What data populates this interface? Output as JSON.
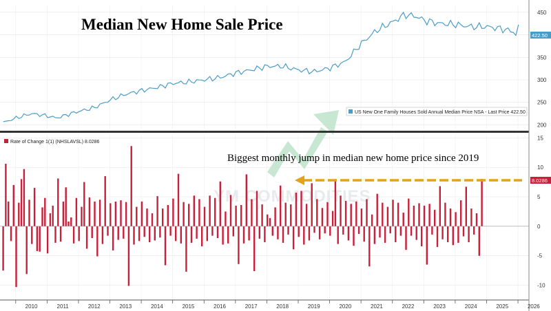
{
  "title": "Median New Home Sale Price",
  "watermark": "YM COMMODITIES",
  "annotation": "Biggest monthly jump in median new home price since 2019",
  "colors": {
    "price_line": "#4a9cc8",
    "roc_bars": "#c8203a",
    "arrow": "#e4a21c",
    "price_label_bg": "#4a9cc8",
    "roc_label_bg": "#c8203a",
    "watermark_logo": "#7cc7a0"
  },
  "chart_data": [
    {
      "type": "line",
      "series_name": "US New One Family Houses Sold Annual Median Price NSA - Last Price 422.50",
      "last_value_label": "422.50",
      "ylim": [
        190,
        465
      ],
      "yticks": [
        200,
        250,
        300,
        350,
        400,
        450
      ],
      "xlim": [
        2009.5,
        2026.35
      ],
      "x_ticks": [
        "2010",
        "2011",
        "2012",
        "2013",
        "2014",
        "2015",
        "2016",
        "2017",
        "2018",
        "2019",
        "2020",
        "2021",
        "2022",
        "2023",
        "2024",
        "2025",
        "2026"
      ],
      "anchors": [
        [
          2009.6,
          205
        ],
        [
          2010.0,
          215
        ],
        [
          2010.5,
          225
        ],
        [
          2011.0,
          220
        ],
        [
          2011.3,
          215
        ],
        [
          2011.9,
          228
        ],
        [
          2012.5,
          238
        ],
        [
          2013.0,
          255
        ],
        [
          2013.5,
          268
        ],
        [
          2014.0,
          276
        ],
        [
          2014.5,
          283
        ],
        [
          2015.0,
          292
        ],
        [
          2015.5,
          295
        ],
        [
          2016.0,
          300
        ],
        [
          2016.5,
          305
        ],
        [
          2017.0,
          315
        ],
        [
          2017.5,
          322
        ],
        [
          2018.0,
          330
        ],
        [
          2018.5,
          330
        ],
        [
          2019.0,
          322
        ],
        [
          2019.5,
          318
        ],
        [
          2020.0,
          326
        ],
        [
          2020.5,
          340
        ],
        [
          2021.0,
          380
        ],
        [
          2021.5,
          410
        ],
        [
          2022.0,
          428
        ],
        [
          2022.4,
          445
        ],
        [
          2022.8,
          440
        ],
        [
          2023.0,
          432
        ],
        [
          2023.5,
          425
        ],
        [
          2024.0,
          423
        ],
        [
          2024.5,
          418
        ],
        [
          2025.0,
          418
        ],
        [
          2025.5,
          413
        ],
        [
          2025.85,
          407
        ],
        [
          2026.0,
          395
        ],
        [
          2026.08,
          422.5
        ]
      ]
    },
    {
      "type": "bar",
      "series_name": "Rate of Change 1(1) (NHSLAVSL) 8.0286",
      "last_value_label": "8.0286",
      "ylim": [
        -12.5,
        15.5
      ],
      "yticks": [
        -10,
        -5,
        0,
        5,
        10,
        15
      ],
      "xlim": [
        2009.5,
        2026.35
      ],
      "start": 2009.6,
      "step": 0.08333,
      "values": [
        -7.5,
        10.6,
        4.2,
        -2.5,
        7.0,
        -10.3,
        4.0,
        8.0,
        9.7,
        -8.1,
        4.5,
        -3.0,
        6.5,
        -4.2,
        -4.3,
        3.2,
        4.8,
        -4.6,
        2.2,
        3.5,
        -2.8,
        8.1,
        -2.6,
        4.2,
        6.6,
        0.8,
        1.5,
        -2.9,
        4.8,
        -2.5,
        3.3,
        7.5,
        -3.8,
        4.9,
        -2.0,
        4.2,
        -5.1,
        4.5,
        -3.0,
        8.5,
        -1.6,
        3.9,
        -4.1,
        4.2,
        -2.3,
        4.4,
        -2.1,
        4.1,
        -10.1,
        13.6,
        -3.1,
        3.3,
        -2.5,
        4.2,
        -1.8,
        3.0,
        -2.7,
        2.2,
        -2.4,
        5.1,
        -1.9,
        3.0,
        -6.6,
        3.6,
        -1.6,
        4.7,
        -2.5,
        8.9,
        -2.9,
        4.1,
        -7.7,
        3.8,
        -2.8,
        5.2,
        -2.1,
        4.6,
        -3.4,
        3.3,
        -2.5,
        5.2,
        -1.6,
        4.8,
        -2.0,
        7.6,
        -3.1,
        2.5,
        -2.9,
        5.3,
        -1.7,
        3.5,
        -6.4,
        3.6,
        -2.9,
        8.8,
        -2.4,
        4.6,
        -7.6,
        6.0,
        -2.1,
        3.7,
        -2.7,
        2.0,
        1.4,
        -1.6,
        3.2,
        -2.2,
        6.9,
        -2.8,
        4.0,
        -1.4,
        3.7,
        -3.9,
        5.7,
        -1.8,
        6.0,
        -3.1,
        3.8,
        -2.4,
        7.3,
        -1.1,
        4.6,
        -2.2,
        3.1,
        -1.2,
        4.1,
        -1.6,
        2.6,
        8.0,
        -3.0,
        5.2,
        -1.4,
        4.3,
        -2.4,
        3.8,
        -3.3,
        4.2,
        -1.3,
        3.0,
        -2.6,
        4.6,
        -6.8,
        2.0,
        -3.0,
        5.5,
        -1.9,
        4.0,
        -2.8,
        3.3,
        -1.2,
        4.5,
        -2.7,
        4.0,
        -1.6,
        2.3,
        -4.0,
        4.7,
        -1.6,
        3.5,
        -2.3,
        3.9,
        -3.4,
        3.5,
        -6.5,
        3.8,
        -1.4,
        2.8,
        -3.5,
        6.8,
        -2.2,
        4.0,
        -2.7,
        3.0,
        -3.2,
        2.4,
        -2.8,
        4.4,
        -1.7,
        6.7,
        -2.7,
        3.0,
        -1.4,
        2.2,
        -5.0,
        8.0286
      ]
    }
  ]
}
